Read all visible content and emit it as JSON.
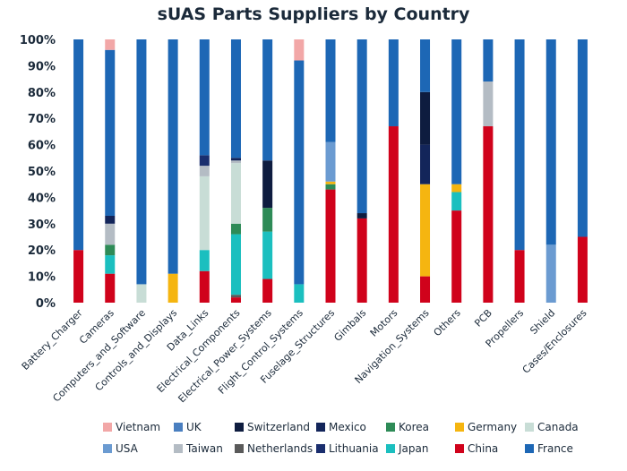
{
  "chart_data": {
    "type": "bar",
    "stacked": true,
    "percent_stacked": true,
    "title": "sUAS Parts Suppliers by Country",
    "xlabel": "",
    "ylabel": "",
    "ylim": [
      0,
      100
    ],
    "y_ticks": [
      "0%",
      "10%",
      "20%",
      "30%",
      "40%",
      "50%",
      "60%",
      "70%",
      "80%",
      "90%",
      "100%"
    ],
    "grid": false,
    "legend_position": "bottom",
    "categories": [
      "Battery_Charger",
      "Cameras",
      "Computers_and_Software",
      "Controls_and_Displays",
      "Data_Links",
      "Electrical_Components",
      "Electrical_Power_Systems",
      "Flight_Control_Systems",
      "Fuselage_Structures",
      "Gimbals",
      "Motors",
      "Navigation_Systems",
      "Others",
      "PCB",
      "Propellers",
      "Shield",
      "Cases/Enclosures"
    ],
    "series": [
      {
        "name": "China",
        "color": "#d0021b",
        "values": [
          20.0,
          11.0,
          0,
          0,
          12.0,
          2.0,
          9.0,
          0,
          43.0,
          32.0,
          67.0,
          10.0,
          35.0,
          67.0,
          20.0,
          0,
          25.0
        ]
      },
      {
        "name": "Netherlands",
        "color": "#5a5a5a",
        "values": [
          0,
          0,
          0,
          0,
          0,
          1.0,
          0,
          0,
          0,
          0,
          0,
          0,
          0,
          0,
          0,
          0,
          0
        ]
      },
      {
        "name": "Japan",
        "color": "#1bbfbf",
        "values": [
          0,
          7.0,
          0,
          0,
          8.0,
          23.0,
          18.0,
          7.0,
          0,
          0,
          0,
          0,
          7.0,
          0,
          0,
          0,
          0
        ]
      },
      {
        "name": "Korea",
        "color": "#2e8b57",
        "values": [
          0,
          4.0,
          0,
          0,
          0,
          4.0,
          9.0,
          0,
          2.0,
          0,
          0,
          0,
          0,
          0,
          0,
          0,
          0
        ]
      },
      {
        "name": "Canada",
        "color": "#c8ddd6",
        "values": [
          0,
          0,
          7.0,
          0,
          28.0,
          23.0,
          0,
          0,
          0,
          0,
          0,
          0,
          0,
          0,
          0,
          0,
          0
        ]
      },
      {
        "name": "Germany",
        "color": "#f5b510",
        "values": [
          0,
          0,
          0,
          11.0,
          0,
          0,
          0,
          0,
          1.0,
          0,
          0,
          35.0,
          3.0,
          0,
          0,
          0,
          0
        ]
      },
      {
        "name": "Taiwan",
        "color": "#b4bcc4",
        "values": [
          0,
          8.0,
          0,
          0,
          4.0,
          1.0,
          0,
          0,
          0,
          0,
          0,
          0,
          0,
          17.0,
          0,
          0,
          0
        ]
      },
      {
        "name": "Lithuania",
        "color": "#1a2e6e",
        "values": [
          0,
          0,
          0,
          0,
          4.0,
          0,
          0,
          0,
          0,
          0,
          0,
          0,
          0,
          0,
          0,
          0,
          0
        ]
      },
      {
        "name": "Mexico",
        "color": "#13255a",
        "values": [
          0,
          3.0,
          0,
          0,
          0,
          1.0,
          0,
          0,
          0,
          0,
          0,
          15.0,
          0,
          0,
          0,
          0,
          0
        ]
      },
      {
        "name": "Switzerland",
        "color": "#0e1c3f",
        "values": [
          0,
          0,
          0,
          0,
          0,
          0,
          18.0,
          0,
          0,
          2.0,
          0,
          20.0,
          0,
          0,
          0,
          0,
          0
        ]
      },
      {
        "name": "USA",
        "color": "#6b9bd1",
        "values": [
          0,
          0,
          0,
          0,
          0,
          0,
          0,
          0,
          15.0,
          0,
          0,
          0,
          0,
          0,
          0,
          22.0,
          0
        ]
      },
      {
        "name": "UK",
        "color": "#4a7fc0",
        "values": [
          0,
          0,
          0,
          0,
          0,
          0,
          0,
          0,
          0,
          0,
          0,
          0,
          0,
          0,
          0,
          0,
          0
        ]
      },
      {
        "name": "France",
        "color": "#1d67b5",
        "values": [
          80.0,
          63.0,
          93.0,
          89.0,
          44.0,
          45.0,
          46.0,
          85.0,
          39.0,
          66.0,
          33.0,
          20.0,
          55.0,
          16.0,
          80.0,
          78.0,
          75.0
        ]
      },
      {
        "name": "Vietnam",
        "color": "#f2a7a7",
        "values": [
          0,
          4.0,
          0,
          0,
          0,
          0,
          0,
          8.0,
          0,
          0,
          0,
          0,
          0,
          0,
          0,
          0,
          0
        ]
      }
    ],
    "legend_rows": [
      [
        "Vietnam",
        "UK",
        "Switzerland",
        "Mexico",
        "Korea",
        "Germany",
        "Canada"
      ],
      [
        "USA",
        "Taiwan",
        "Netherlands",
        "Lithuania",
        "Japan",
        "China",
        "France"
      ]
    ]
  }
}
